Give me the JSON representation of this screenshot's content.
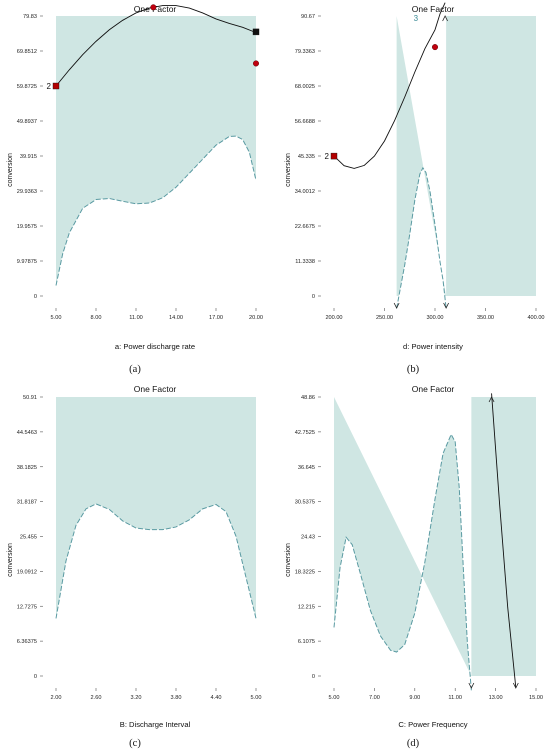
{
  "chart_data": [
    {
      "type": "line",
      "panel_label": "(a)",
      "title": "One Factor",
      "xlabel": "a: Power discharge rate",
      "ylabel": "conversion",
      "x_ticks": [
        "5.00",
        "8.00",
        "11.00",
        "14.00",
        "17.00",
        "20.00"
      ],
      "y_ticks": [
        "0",
        "9.97875",
        "19.9575",
        "29.9363",
        "39.915",
        "49.8937",
        "59.8725",
        "69.8512",
        "79.83"
      ],
      "xlim": [
        5,
        20
      ],
      "ylim": [
        0,
        79.83
      ],
      "series": [
        {
          "style": "solid",
          "x": [
            5,
            6,
            7,
            8,
            9,
            10,
            11,
            12,
            13,
            14,
            15,
            16,
            17,
            18,
            19,
            20
          ],
          "y": [
            59.87,
            64.5,
            68.8,
            72.6,
            75.9,
            78.6,
            80.7,
            82.1,
            82.8,
            82.8,
            82.1,
            80.7,
            79.0,
            77.7,
            76.6,
            75.1
          ]
        },
        {
          "style": "dashed",
          "x": [
            5,
            5.5,
            6,
            7,
            8,
            9,
            10,
            11,
            12,
            13,
            14,
            15,
            16,
            17,
            18,
            18.5,
            19,
            19.5,
            20
          ],
          "y": [
            3,
            12,
            18,
            25,
            27.5,
            27.8,
            27,
            26.3,
            26.5,
            28,
            31,
            35,
            39,
            43,
            45.5,
            45.6,
            44.6,
            41,
            33
          ]
        }
      ],
      "points": [
        {
          "x": 5,
          "y": 59.87,
          "marker": "square",
          "color": "#b30000",
          "label": "2"
        },
        {
          "x": 12.3,
          "y": 82.3,
          "marker": "circle",
          "color": "#c0000f"
        },
        {
          "x": 20,
          "y": 75.3,
          "marker": "square",
          "color": "#111111"
        },
        {
          "x": 20,
          "y": 66.3,
          "marker": "circle",
          "color": "#c0000f"
        }
      ]
    },
    {
      "type": "line",
      "panel_label": "(b)",
      "title": "One Factor",
      "xlabel": "d: Power intensity",
      "ylabel": "conversion",
      "x_ticks": [
        "200.00",
        "250.00",
        "300.00",
        "350.00",
        "400.00"
      ],
      "y_ticks": [
        "0",
        "11.3338",
        "22.6675",
        "34.0012",
        "45.335",
        "56.6688",
        "68.0025",
        "79.3363",
        "90.67"
      ],
      "xlim": [
        200,
        400
      ],
      "ylim": [
        0,
        90.67
      ],
      "series": [
        {
          "style": "solid",
          "x": [
            200,
            210,
            220,
            230,
            240,
            250,
            260,
            270,
            280,
            290,
            300,
            305,
            310
          ],
          "y": [
            45.3,
            42.2,
            41.3,
            42.3,
            45.3,
            50.2,
            56.8,
            64.4,
            72.5,
            80.1,
            86.2,
            91.4,
            95.0
          ]
        },
        {
          "style": "dashed",
          "x": [
            262,
            270,
            275,
            280,
            285,
            288,
            291,
            295,
            300,
            305,
            308,
            311
          ],
          "y": [
            -4,
            10,
            20,
            31,
            39.5,
            41.5,
            40,
            34,
            23,
            11,
            5,
            -4
          ]
        }
      ],
      "points": [
        {
          "x": 200,
          "y": 45.3,
          "marker": "square",
          "color": "#b30000",
          "label": "2"
        },
        {
          "x": 300,
          "y": 80.6,
          "marker": "circle",
          "color": "#c0000f"
        }
      ],
      "top_marker": {
        "x": 281,
        "label": "3"
      }
    },
    {
      "type": "line",
      "panel_label": "(c)",
      "title": "One Factor",
      "xlabel": "B: Discharge Interval",
      "ylabel": "conversion",
      "x_ticks": [
        "2.00",
        "2.60",
        "3.20",
        "3.80",
        "4.40",
        "5.00"
      ],
      "y_ticks": [
        "0",
        "6.36375",
        "12.7275",
        "19.0912",
        "25.455",
        "31.8187",
        "38.1825",
        "44.5463",
        "50.91"
      ],
      "xlim": [
        2,
        5
      ],
      "ylim": [
        0,
        50.91
      ],
      "series": [
        {
          "style": "dashed",
          "x": [
            2.0,
            2.15,
            2.3,
            2.45,
            2.6,
            2.8,
            3.0,
            3.2,
            3.4,
            3.6,
            3.8,
            4.0,
            4.2,
            4.4,
            4.55,
            4.7,
            4.85,
            5.0
          ],
          "y": [
            10.5,
            21,
            27.5,
            30.5,
            31.4,
            30.4,
            28.3,
            27,
            26.7,
            26.7,
            27.2,
            28.5,
            30.5,
            31.3,
            30,
            25.5,
            18,
            10.5
          ]
        }
      ],
      "points": []
    },
    {
      "type": "line",
      "panel_label": "(d)",
      "title": "One Factor",
      "xlabel": "C: Power Frequency",
      "ylabel": "conversion",
      "x_ticks": [
        "5.00",
        "7.00",
        "9.00",
        "11.00",
        "13.00",
        "15.00"
      ],
      "y_ticks": [
        "0",
        "6.1075",
        "12.215",
        "18.3225",
        "24.43",
        "30.5375",
        "36.645",
        "42.7525",
        "48.86"
      ],
      "xlim": [
        5,
        15
      ],
      "ylim": [
        0,
        48.86
      ],
      "series": [
        {
          "style": "solid",
          "x": [
            12.8,
            13.2,
            13.6,
            14.0
          ],
          "y": [
            49.5,
            30.0,
            12.0,
            -2.0
          ]
        },
        {
          "style": "dashed",
          "x": [
            5.0,
            5.3,
            5.6,
            5.9,
            6.3,
            6.8,
            7.3,
            7.8,
            8.1,
            8.5,
            9.0,
            9.5,
            10.0,
            10.4,
            10.8,
            11.0,
            11.2,
            11.4,
            11.6,
            11.8
          ],
          "y": [
            8.5,
            19,
            24.3,
            23,
            18,
            11.5,
            7,
            4.5,
            4.2,
            5.5,
            11,
            20,
            31,
            39,
            42.3,
            41,
            33,
            19,
            6,
            -2.5
          ]
        }
      ],
      "points": []
    }
  ]
}
